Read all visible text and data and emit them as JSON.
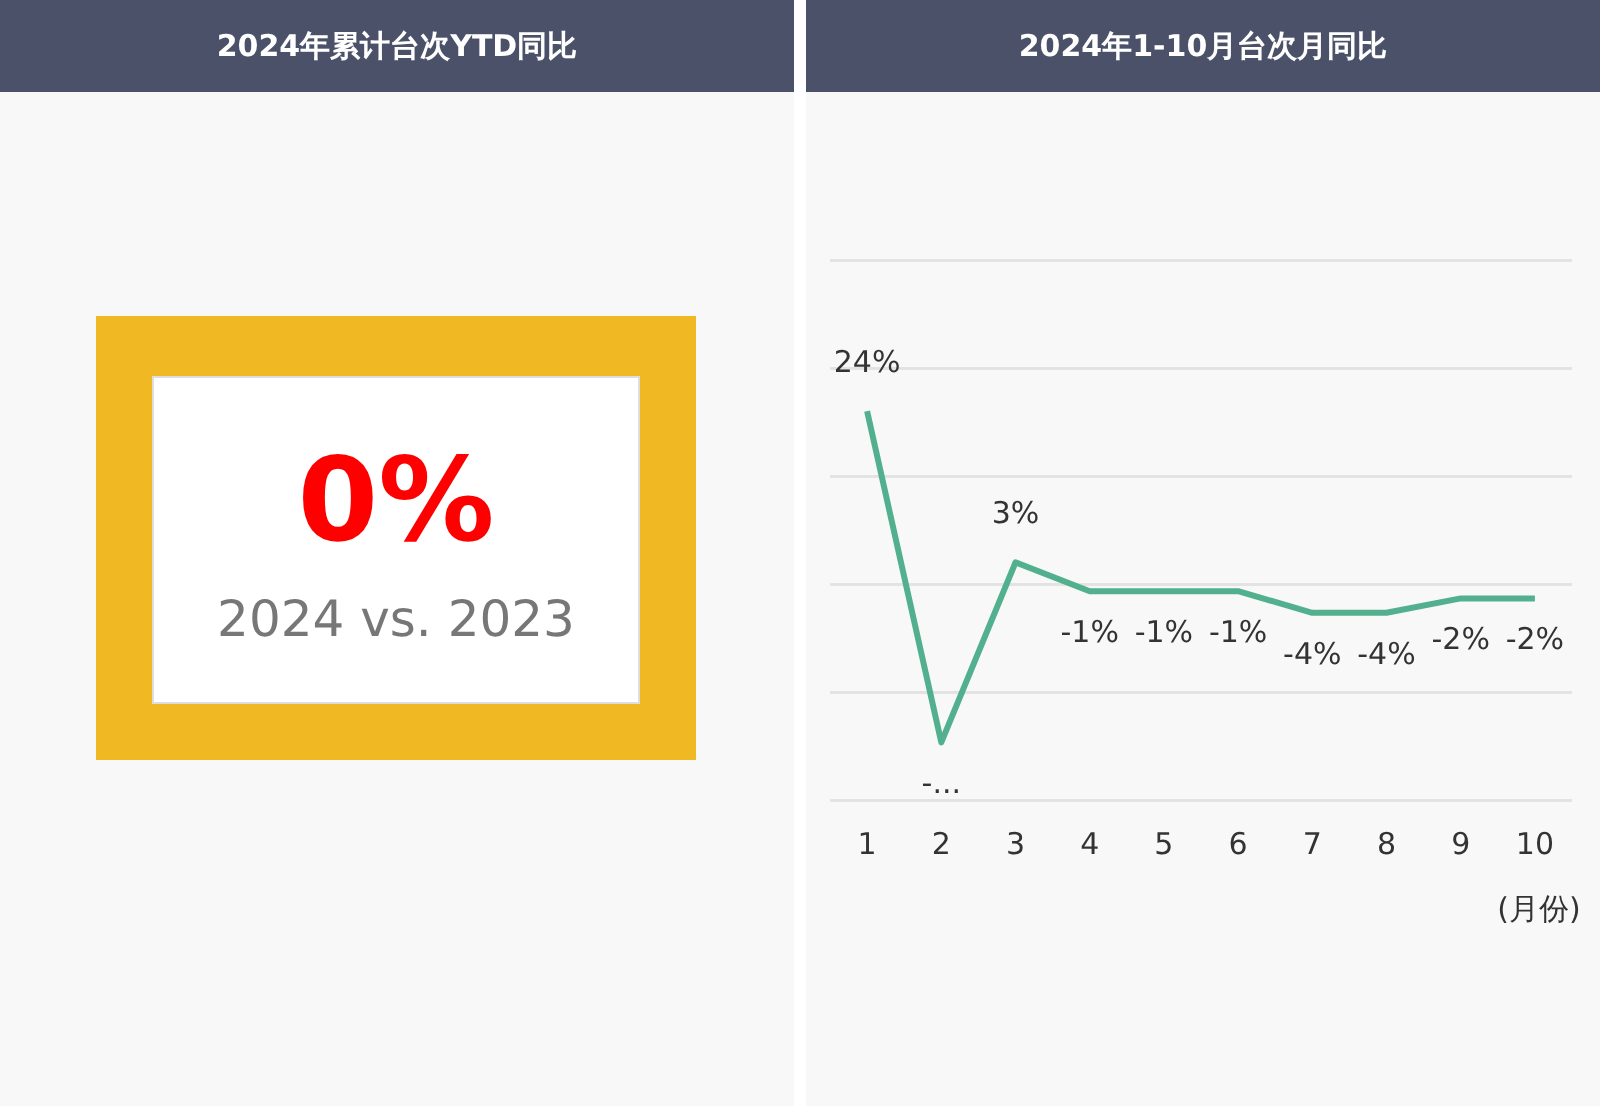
{
  "chart_data": [
    {
      "type": "other",
      "title": "2024年累计台次YTD同比",
      "annotations": [
        "0%",
        "2024 vs. 2023"
      ]
    },
    {
      "type": "line",
      "title": "2024年1-10月台次月同比",
      "xlabel": "(月份)",
      "categories": [
        "1",
        "2",
        "3",
        "4",
        "5",
        "6",
        "7",
        "8",
        "9",
        "10"
      ],
      "series": [
        {
          "color": "#52b08f",
          "values": [
            24,
            -22,
            3,
            -1,
            -1,
            -1,
            -4,
            -4,
            -2,
            -2
          ],
          "value_labels": [
            "24%",
            "-...",
            "3%",
            "-1%",
            "-1%",
            "-1%",
            "-4%",
            "-4%",
            "-2%",
            "-2%"
          ]
        }
      ],
      "ylim": [
        -30,
        45
      ],
      "yticks": [
        {
          "value": -30,
          "label": null
        },
        {
          "value": -15,
          "label": null
        },
        {
          "value": 0,
          "label": null
        },
        {
          "value": 15,
          "label": null
        },
        {
          "value": 30,
          "label": null
        },
        {
          "value": 45,
          "label": null
        }
      ],
      "grid": "y",
      "tick_labels": "x",
      "marker": "none",
      "line_style": "solid"
    }
  ]
}
